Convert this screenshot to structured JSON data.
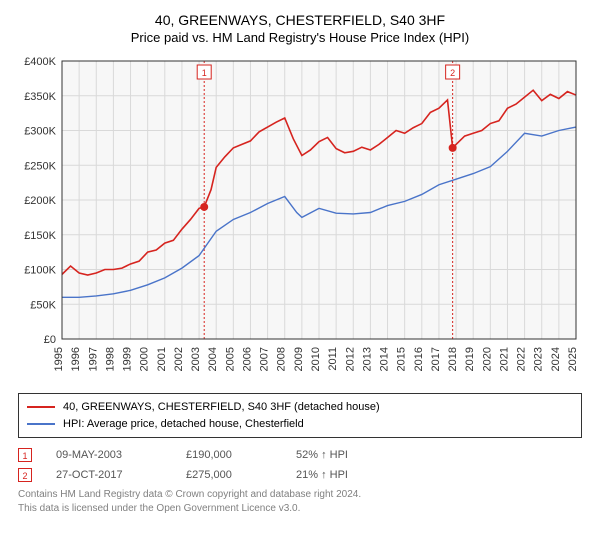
{
  "title": "40, GREENWAYS, CHESTERFIELD, S40 3HF",
  "subtitle": "Price paid vs. HM Land Registry's House Price Index (HPI)",
  "chart": {
    "type": "line",
    "plot_bg": "#f7f7f7",
    "grid_color": "#d9d9d9",
    "ylim": [
      0,
      400000
    ],
    "ytick_step": 50000,
    "yticks_labels": [
      "£0",
      "£50K",
      "£100K",
      "£150K",
      "£200K",
      "£250K",
      "£300K",
      "£350K",
      "£400K"
    ],
    "xlim": [
      1995,
      2025
    ],
    "xticks": [
      1995,
      1996,
      1997,
      1998,
      1999,
      2000,
      2001,
      2002,
      2003,
      2004,
      2005,
      2006,
      2007,
      2008,
      2009,
      2010,
      2011,
      2012,
      2013,
      2014,
      2015,
      2016,
      2017,
      2018,
      2019,
      2020,
      2021,
      2022,
      2023,
      2024,
      2025
    ],
    "series": [
      {
        "name": "property",
        "label": "40, GREENWAYS, CHESTERFIELD, S40 3HF (detached house)",
        "color": "#d6241f",
        "line_width": 1.6,
        "points": [
          [
            1995,
            93000
          ],
          [
            1995.5,
            105000
          ],
          [
            1996,
            95000
          ],
          [
            1996.5,
            92000
          ],
          [
            1997,
            95000
          ],
          [
            1997.5,
            100000
          ],
          [
            1998,
            100000
          ],
          [
            1998.5,
            102000
          ],
          [
            1999,
            108000
          ],
          [
            1999.5,
            112000
          ],
          [
            2000,
            125000
          ],
          [
            2000.5,
            128000
          ],
          [
            2001,
            138000
          ],
          [
            2001.5,
            142000
          ],
          [
            2002,
            158000
          ],
          [
            2002.5,
            172000
          ],
          [
            2003,
            188000
          ],
          [
            2003.3,
            190000
          ],
          [
            2003.7,
            215000
          ],
          [
            2004,
            247000
          ],
          [
            2004.5,
            262000
          ],
          [
            2005,
            275000
          ],
          [
            2005.5,
            280000
          ],
          [
            2006,
            285000
          ],
          [
            2006.5,
            298000
          ],
          [
            2007,
            305000
          ],
          [
            2007.5,
            312000
          ],
          [
            2008,
            318000
          ],
          [
            2008.5,
            288000
          ],
          [
            2009,
            264000
          ],
          [
            2009.5,
            272000
          ],
          [
            2010,
            284000
          ],
          [
            2010.5,
            290000
          ],
          [
            2011,
            274000
          ],
          [
            2011.5,
            268000
          ],
          [
            2012,
            270000
          ],
          [
            2012.5,
            276000
          ],
          [
            2013,
            272000
          ],
          [
            2013.5,
            280000
          ],
          [
            2014,
            290000
          ],
          [
            2014.5,
            300000
          ],
          [
            2015,
            296000
          ],
          [
            2015.5,
            304000
          ],
          [
            2016,
            310000
          ],
          [
            2016.5,
            326000
          ],
          [
            2017,
            332000
          ],
          [
            2017.5,
            344000
          ],
          [
            2017.8,
            275000
          ],
          [
            2018,
            280000
          ],
          [
            2018.5,
            292000
          ],
          [
            2019,
            296000
          ],
          [
            2019.5,
            300000
          ],
          [
            2020,
            310000
          ],
          [
            2020.5,
            314000
          ],
          [
            2021,
            332000
          ],
          [
            2021.5,
            338000
          ],
          [
            2022,
            348000
          ],
          [
            2022.5,
            358000
          ],
          [
            2023,
            343000
          ],
          [
            2023.5,
            352000
          ],
          [
            2024,
            346000
          ],
          [
            2024.5,
            356000
          ],
          [
            2025,
            351000
          ]
        ]
      },
      {
        "name": "hpi",
        "label": "HPI: Average price, detached house, Chesterfield",
        "color": "#4a74c9",
        "line_width": 1.4,
        "points": [
          [
            1995,
            60000
          ],
          [
            1996,
            60000
          ],
          [
            1997,
            62000
          ],
          [
            1998,
            65000
          ],
          [
            1999,
            70000
          ],
          [
            2000,
            78000
          ],
          [
            2001,
            88000
          ],
          [
            2002,
            102000
          ],
          [
            2003,
            120000
          ],
          [
            2004,
            155000
          ],
          [
            2005,
            172000
          ],
          [
            2006,
            182000
          ],
          [
            2007,
            195000
          ],
          [
            2008,
            205000
          ],
          [
            2008.7,
            182000
          ],
          [
            2009,
            175000
          ],
          [
            2010,
            188000
          ],
          [
            2011,
            181000
          ],
          [
            2012,
            180000
          ],
          [
            2013,
            182000
          ],
          [
            2014,
            192000
          ],
          [
            2015,
            198000
          ],
          [
            2016,
            208000
          ],
          [
            2017,
            222000
          ],
          [
            2018,
            230000
          ],
          [
            2019,
            238000
          ],
          [
            2020,
            248000
          ],
          [
            2021,
            270000
          ],
          [
            2022,
            296000
          ],
          [
            2023,
            292000
          ],
          [
            2024,
            300000
          ],
          [
            2025,
            305000
          ]
        ]
      }
    ],
    "markers": [
      {
        "idx": "1",
        "x": 2003.3,
        "y": 190000,
        "color": "#d6241f"
      },
      {
        "idx": "2",
        "x": 2017.8,
        "y": 275000,
        "color": "#d6241f"
      }
    ]
  },
  "sales": [
    {
      "idx": "1",
      "color": "#d6241f",
      "date": "09-MAY-2003",
      "price": "£190,000",
      "hpi": "52% ↑ HPI"
    },
    {
      "idx": "2",
      "color": "#d6241f",
      "date": "27-OCT-2017",
      "price": "£275,000",
      "hpi": "21% ↑ HPI"
    }
  ],
  "footnote_l1": "Contains HM Land Registry data © Crown copyright and database right 2024.",
  "footnote_l2": "This data is licensed under the Open Government Licence v3.0.",
  "axis_fontsize": 11,
  "title_fontsize": 14
}
